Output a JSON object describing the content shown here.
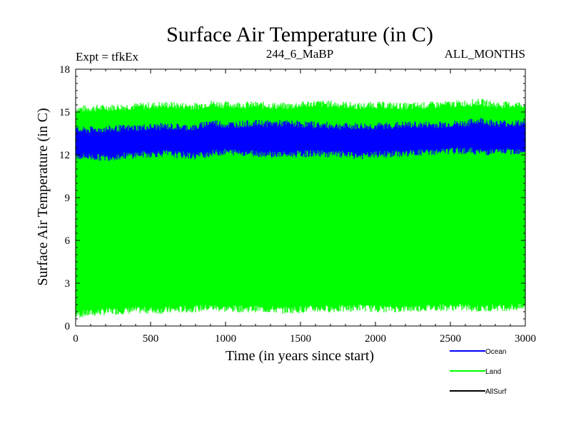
{
  "chart_data": {
    "type": "line",
    "title": "Surface Air Temperature (in C)",
    "subtitle_left": "Expt = tfkEx",
    "subtitle_center": "244_6_MaBP",
    "subtitle_right": "ALL_MONTHS",
    "xlabel": "Time (in years since start)",
    "ylabel": "Surface Air Temperature (in C)",
    "xlim": [
      0,
      3000
    ],
    "ylim": [
      0,
      18
    ],
    "x_ticks": [
      "0",
      "500",
      "1000",
      "1500",
      "2000",
      "2500",
      "3000"
    ],
    "y_ticks": [
      "0",
      "3",
      "6",
      "9",
      "12",
      "15",
      "18"
    ],
    "grid": false,
    "legend_position": "bottom-right, below plot",
    "series": [
      {
        "name": "Ocean",
        "color": "#0000ff",
        "x": [
          0,
          200,
          400,
          600,
          800,
          900,
          1000,
          1200,
          1400,
          1600,
          1800,
          1900,
          2000,
          2200,
          2400,
          2600,
          2700,
          2800,
          3000
        ],
        "upper": [
          13.7,
          13.8,
          13.9,
          14.0,
          13.9,
          14.3,
          14.1,
          14.2,
          14.2,
          14.1,
          14.0,
          14.0,
          14.0,
          14.1,
          14.1,
          14.2,
          14.4,
          14.2,
          14.2
        ],
        "lower": [
          11.9,
          11.8,
          12.0,
          12.1,
          11.9,
          12.1,
          12.2,
          12.1,
          12.0,
          12.1,
          12.0,
          11.9,
          12.0,
          12.1,
          12.2,
          12.3,
          12.2,
          12.2,
          12.3
        ]
      },
      {
        "name": "Land",
        "color": "#00ff00",
        "x": [
          0,
          200,
          400,
          600,
          800,
          900,
          1000,
          1200,
          1400,
          1600,
          1800,
          1900,
          2000,
          2200,
          2400,
          2600,
          2700,
          2800,
          3000
        ],
        "upper": [
          15.2,
          15.3,
          15.4,
          15.5,
          15.4,
          15.6,
          15.5,
          15.5,
          15.4,
          15.6,
          15.5,
          15.4,
          15.5,
          15.4,
          15.5,
          15.6,
          15.7,
          15.5,
          15.5
        ],
        "lower": [
          0.8,
          1.0,
          1.1,
          1.1,
          1.2,
          1.3,
          1.2,
          1.2,
          1.1,
          1.2,
          1.2,
          1.3,
          1.2,
          1.2,
          1.3,
          1.3,
          1.2,
          1.3,
          1.3
        ]
      },
      {
        "name": "AllSurf",
        "color": "#000000",
        "x": [],
        "upper": [],
        "lower": []
      }
    ]
  }
}
